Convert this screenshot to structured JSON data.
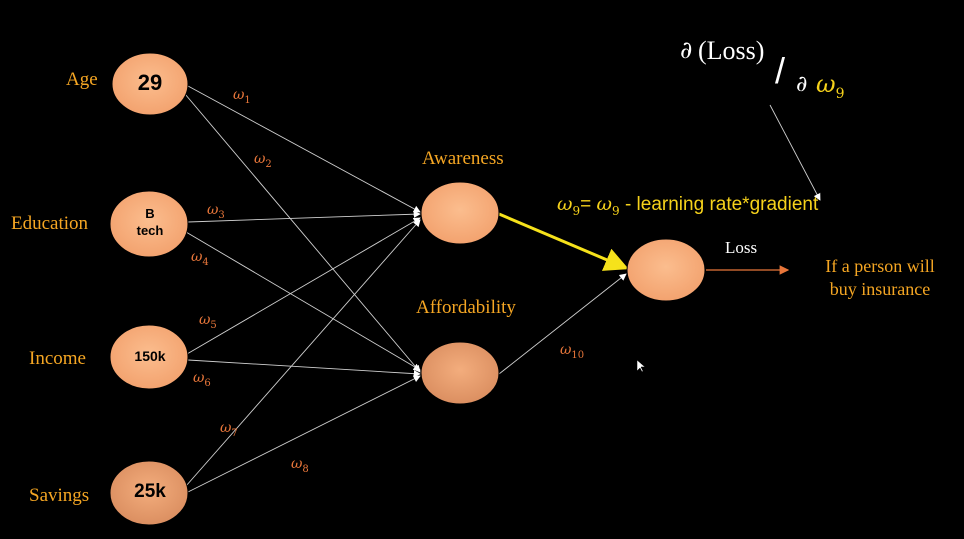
{
  "inputs": {
    "age": {
      "label": "Age",
      "value": "29"
    },
    "education": {
      "label": "Education",
      "value_line1": "B",
      "value_line2": "tech"
    },
    "income": {
      "label": "Income",
      "value": "150k"
    },
    "savings": {
      "label": "Savings",
      "value": "25k"
    }
  },
  "hidden": {
    "awareness": {
      "label": "Awareness"
    },
    "affordability": {
      "label": "Affordability"
    }
  },
  "output": {
    "loss_label": "Loss",
    "target_line1": "If a person will",
    "target_line2": "buy insurance"
  },
  "weights": {
    "symbol": "ω",
    "w1": "1",
    "w2": "2",
    "w3": "3",
    "w4": "4",
    "w5": "5",
    "w6": "6",
    "w7": "7",
    "w8": "8",
    "w10": "10"
  },
  "gradient": {
    "partial": "∂",
    "numerator": "(Loss)",
    "slash": "/",
    "denominator_partial": "∂",
    "denominator_symbol": "ω",
    "denominator_sub": "9"
  },
  "update_rule": {
    "symbol": "ω",
    "sub": "9",
    "equals": "=",
    "rhs_tail": " - learning rate*gradient"
  },
  "colors": {
    "node_fill": "#f8b07e",
    "highlight_edge": "#f6e21b",
    "edge": "#cfcfcf",
    "label": "#f5a623",
    "weight": "#e8763a",
    "arrow_out": "#e8763a"
  }
}
